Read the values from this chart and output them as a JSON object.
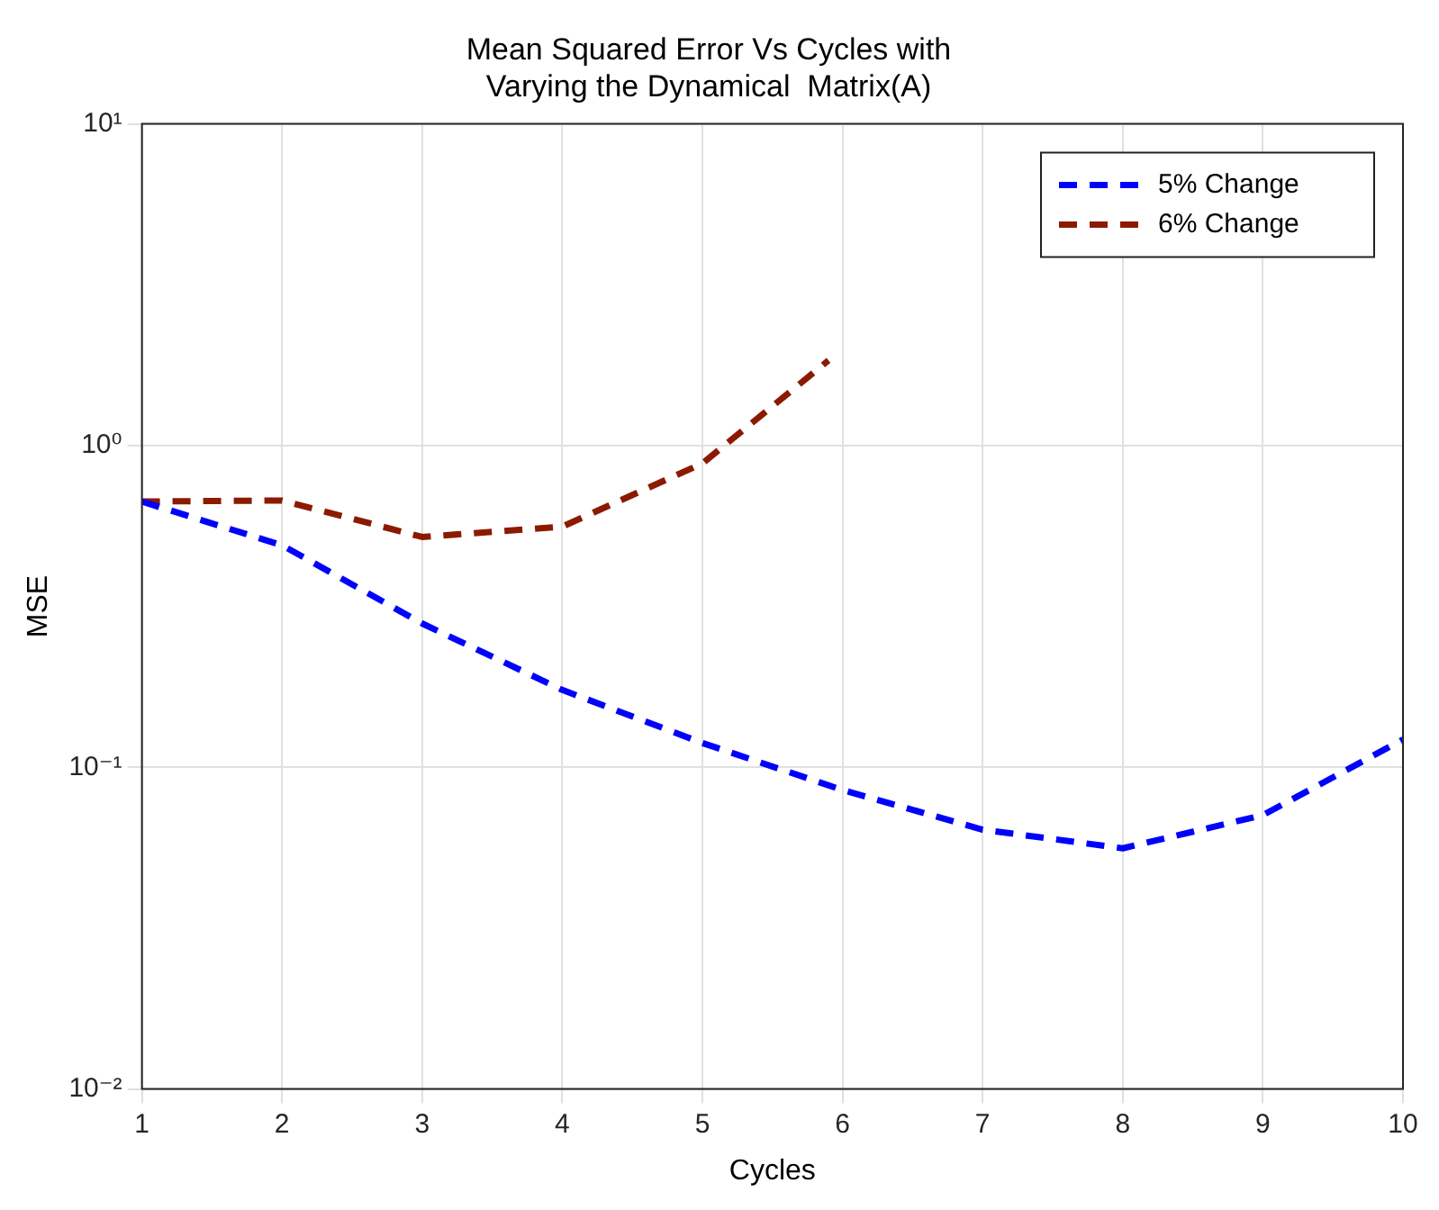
{
  "chart_data": {
    "type": "line",
    "title": "Mean Squared Error Vs Cycles with\nVarying the Dynamical  Matrix(A)",
    "xlabel": "Cycles",
    "ylabel": "MSE",
    "x": [
      1,
      2,
      3,
      4,
      5,
      6,
      7,
      8,
      9,
      10
    ],
    "series": [
      {
        "name": "5% Change",
        "color": "#0000ff",
        "values": [
          0.67,
          0.49,
          0.28,
          0.174,
          0.119,
          0.085,
          0.064,
          0.056,
          0.071,
          0.122
        ]
      },
      {
        "name": "6% Change",
        "color": "#8b1a00",
        "x": [
          1,
          2,
          3,
          4,
          5,
          5.9
        ],
        "values": [
          0.67,
          0.675,
          0.52,
          0.56,
          0.88,
          1.84
        ]
      }
    ],
    "xlim": [
      1,
      10
    ],
    "xticks": [
      1,
      2,
      3,
      4,
      5,
      6,
      7,
      8,
      9,
      10
    ],
    "ylim": [
      0.01,
      10
    ],
    "yticks": [
      {
        "value": 0.01,
        "label": "10⁻²"
      },
      {
        "value": 0.1,
        "label": "10⁻¹"
      },
      {
        "value": 1,
        "label": "10⁰"
      },
      {
        "value": 10,
        "label": "10¹"
      }
    ],
    "log": "y",
    "grid": true,
    "legend": "top right",
    "line_style": "dashed",
    "marker": "none"
  }
}
